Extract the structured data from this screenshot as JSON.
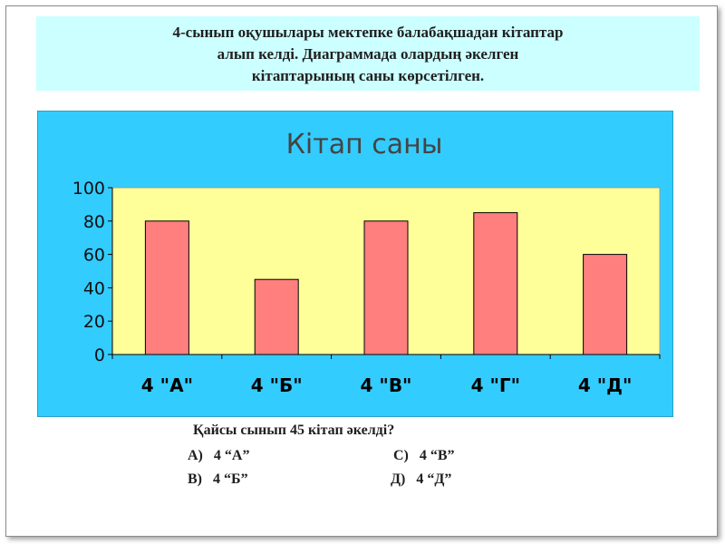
{
  "header": {
    "lines": [
      "4-сынып  оқушылары мектепке балабақшадан кітаптар",
      "алып келді.  Диаграммада олардың әкелген",
      "кітаптарының  саны көрсетілген."
    ],
    "background": "#ccffff"
  },
  "chart_data": {
    "type": "bar",
    "title": "Кітап  саны",
    "categories": [
      "4 \"А\"",
      "4 \"Б\"",
      "4 \"В\"",
      "4 \"Г\"",
      "4 \"Д\""
    ],
    "values": [
      80,
      45,
      80,
      85,
      60
    ],
    "ylim": [
      0,
      100
    ],
    "yticks": [
      0,
      20,
      40,
      60,
      80,
      100
    ],
    "xlabel": "",
    "ylabel": "",
    "grid": false,
    "legend": "none",
    "colors": {
      "panel": "#33ccff",
      "plot_area": "#ffff99",
      "bar": "#ff7f7f",
      "bar_edge": "#000000",
      "title_text": "#444444"
    }
  },
  "question": {
    "text": "Қайсы сынып 45 кітап әкелді?",
    "options": {
      "a": "А)   4 “А”",
      "c": "С)   4 “В”",
      "b": "В)   4 “Б”",
      "d": "Д)   4 “Д”"
    }
  }
}
